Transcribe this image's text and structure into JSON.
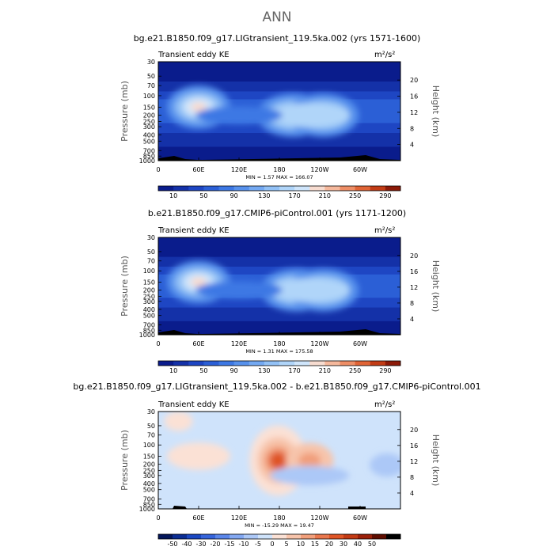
{
  "page": {
    "title": "ANN"
  },
  "chart_data": [
    {
      "type": "heatmap",
      "title": "bg.e21.B1850.f09_g17.LIGtransient_119.5ka.002 (yrs 1571-1600)",
      "field_label": "Transient eddy KE",
      "units": "m²/s²",
      "ylabel": "Pressure (mb)",
      "ylabel_right": "Height (km)",
      "x_ticks": [
        "0",
        "60E",
        "120E",
        "180",
        "120W",
        "60W"
      ],
      "y_ticks": [
        "30",
        "50",
        "70",
        "100",
        "150",
        "200",
        "250",
        "300",
        "400",
        "500",
        "700",
        "850",
        "1000"
      ],
      "height_ticks": [
        "20",
        "16",
        "12",
        "8",
        "4"
      ],
      "stats": "MIN = 1.57  MAX = 166.07",
      "colorbar_labels": [
        "10",
        "50",
        "90",
        "130",
        "170",
        "210",
        "250",
        "290"
      ],
      "colorbar_levels": 15,
      "colormap": "blue-white-red",
      "grid": false,
      "features": [
        {
          "lon": 60,
          "pressure": 150,
          "value": 140
        },
        {
          "lon": 200,
          "pressure": 200,
          "value": 166
        },
        {
          "lon": 245,
          "pressure": 200,
          "value": 150
        }
      ]
    },
    {
      "type": "heatmap",
      "title": "b.e21.B1850.f09_g17.CMIP6-piControl.001 (yrs 1171-1200)",
      "field_label": "Transient eddy KE",
      "units": "m²/s²",
      "ylabel": "Pressure (mb)",
      "ylabel_right": "Height (km)",
      "x_ticks": [
        "0",
        "60E",
        "120E",
        "180",
        "120W",
        "60W"
      ],
      "y_ticks": [
        "30",
        "50",
        "70",
        "100",
        "150",
        "200",
        "250",
        "300",
        "400",
        "500",
        "700",
        "850",
        "1000"
      ],
      "height_ticks": [
        "20",
        "16",
        "12",
        "8",
        "4"
      ],
      "stats": "MIN = 1.31  MAX = 175.58",
      "colorbar_labels": [
        "10",
        "50",
        "90",
        "130",
        "170",
        "210",
        "250",
        "290"
      ],
      "colorbar_levels": 15,
      "colormap": "blue-white-red",
      "grid": false,
      "features": [
        {
          "lon": 60,
          "pressure": 150,
          "value": 150
        },
        {
          "lon": 205,
          "pressure": 200,
          "value": 175
        },
        {
          "lon": 245,
          "pressure": 200,
          "value": 160
        }
      ]
    },
    {
      "type": "heatmap",
      "title": "bg.e21.B1850.f09_g17.LIGtransient_119.5ka.002 - b.e21.B1850.f09_g17.CMIP6-piControl.001",
      "field_label": "Transient eddy KE",
      "units": "m²/s²",
      "ylabel": "Pressure (mb)",
      "ylabel_right": "Height (km)",
      "x_ticks": [
        "0",
        "60E",
        "120E",
        "180",
        "120W",
        "60W"
      ],
      "y_ticks": [
        "30",
        "50",
        "70",
        "100",
        "150",
        "200",
        "250",
        "300",
        "400",
        "500",
        "700",
        "850",
        "1000"
      ],
      "height_ticks": [
        "20",
        "16",
        "12",
        "8",
        "4"
      ],
      "stats": "MIN = -15.29  MAX = 19.47",
      "colorbar_labels": [
        "-50",
        "-40",
        "-30",
        "-20",
        "-15",
        "-10",
        "-5",
        "0",
        "5",
        "10",
        "15",
        "20",
        "30",
        "40",
        "50"
      ],
      "colorbar_levels": 16,
      "colormap": "blue-white-red",
      "grid": false,
      "features": [
        {
          "lon": 178,
          "pressure": 175,
          "value": 19.5
        },
        {
          "lon": 225,
          "pressure": 175,
          "value": 10
        },
        {
          "lon": 60,
          "pressure": 150,
          "value": 5
        },
        {
          "lon": 225,
          "pressure": 300,
          "value": -8
        }
      ]
    }
  ]
}
